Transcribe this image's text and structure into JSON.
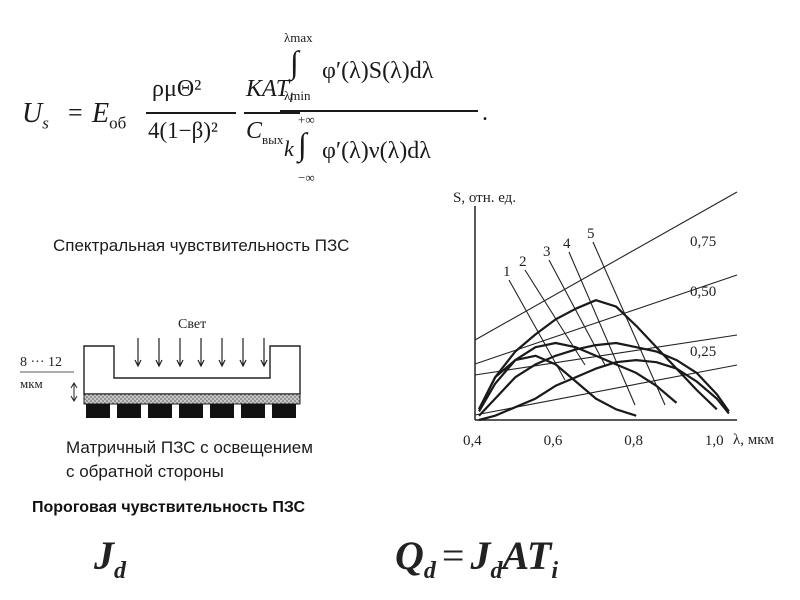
{
  "formula": {
    "lhs": "U",
    "lhs_sub": "s",
    "eq": "=",
    "E": "E",
    "E_sub": "об",
    "frac1_num": "ρμΘ²",
    "frac1_den": "4(1−β)²",
    "frac2_num": "KAT",
    "frac2_num_sub": "i",
    "frac2_den": "C",
    "frac2_den_sub": "вых",
    "int_upper": "λmax",
    "int_lower": "λmin",
    "int_upper2": "+∞",
    "int_lower2": "−∞",
    "integral_sign": "∫",
    "num_integrand": "φ′(λ)S(λ)dλ",
    "den_k": "k",
    "den_integrand": "φ′(λ)ν(λ)dλ",
    "period": "."
  },
  "caption_spectral": "Спектральная чувствительность ПЗС",
  "caption_matrix_line1": "Матричный ПЗС с освещением",
  "caption_matrix_line2": "с обратной стороны",
  "caption_threshold": "Пороговая чувствительность ПЗС",
  "diagram": {
    "light_label": "Свет",
    "thickness_label": "8 ··· 12",
    "thickness_unit": "мкм",
    "arrow_count": 7,
    "pixel_count": 7
  },
  "formula_jd": {
    "J": "J",
    "sub": "d"
  },
  "formula_qd": {
    "Q": "Q",
    "Q_sub": "d",
    "eq": "=",
    "J": "J",
    "J_sub": "d",
    "rest": "AT",
    "rest_sub": "i"
  },
  "chart_data": {
    "type": "line",
    "ylabel": "S, отн. ед.",
    "xlabel": "λ, мкм",
    "xlim": [
      0.4,
      1.05
    ],
    "ylim": [
      0,
      1
    ],
    "x_ticks": [
      "0,4",
      "0,6",
      "0,8",
      "1,0"
    ],
    "x_tick_values": [
      0.4,
      0.6,
      0.8,
      1.0
    ],
    "quantum_efficiency_labels": [
      "0,75",
      "0,50",
      "0,25"
    ],
    "curve_labels": [
      "1",
      "2",
      "3",
      "4",
      "5"
    ],
    "series": [
      {
        "name": "1",
        "x": [
          0.41,
          0.45,
          0.5,
          0.55,
          0.6,
          0.65,
          0.7,
          0.75,
          0.8
        ],
        "y": [
          0.05,
          0.2,
          0.28,
          0.3,
          0.26,
          0.18,
          0.1,
          0.05,
          0.02
        ]
      },
      {
        "name": "2",
        "x": [
          0.41,
          0.45,
          0.5,
          0.55,
          0.6,
          0.65,
          0.7,
          0.75,
          0.8,
          0.85,
          0.9
        ],
        "y": [
          0.04,
          0.17,
          0.28,
          0.34,
          0.36,
          0.34,
          0.3,
          0.26,
          0.22,
          0.16,
          0.08
        ]
      },
      {
        "name": "3",
        "x": [
          0.41,
          0.45,
          0.5,
          0.55,
          0.6,
          0.65,
          0.7,
          0.75,
          0.8,
          0.85,
          0.9,
          0.95,
          1.0
        ],
        "y": [
          0.05,
          0.2,
          0.32,
          0.4,
          0.47,
          0.52,
          0.56,
          0.53,
          0.44,
          0.34,
          0.24,
          0.14,
          0.05
        ]
      },
      {
        "name": "4",
        "x": [
          0.41,
          0.45,
          0.5,
          0.55,
          0.6,
          0.65,
          0.7,
          0.75,
          0.8,
          0.85,
          0.9,
          0.95,
          1.0,
          1.03
        ],
        "y": [
          0.02,
          0.1,
          0.2,
          0.26,
          0.3,
          0.33,
          0.35,
          0.36,
          0.34,
          0.32,
          0.28,
          0.22,
          0.12,
          0.04
        ]
      },
      {
        "name": "5",
        "x": [
          0.41,
          0.45,
          0.5,
          0.55,
          0.6,
          0.65,
          0.7,
          0.75,
          0.8,
          0.85,
          0.9,
          0.95,
          1.0,
          1.03
        ],
        "y": [
          0.0,
          0.02,
          0.06,
          0.1,
          0.16,
          0.2,
          0.24,
          0.27,
          0.28,
          0.27,
          0.24,
          0.18,
          0.1,
          0.03
        ]
      }
    ]
  }
}
